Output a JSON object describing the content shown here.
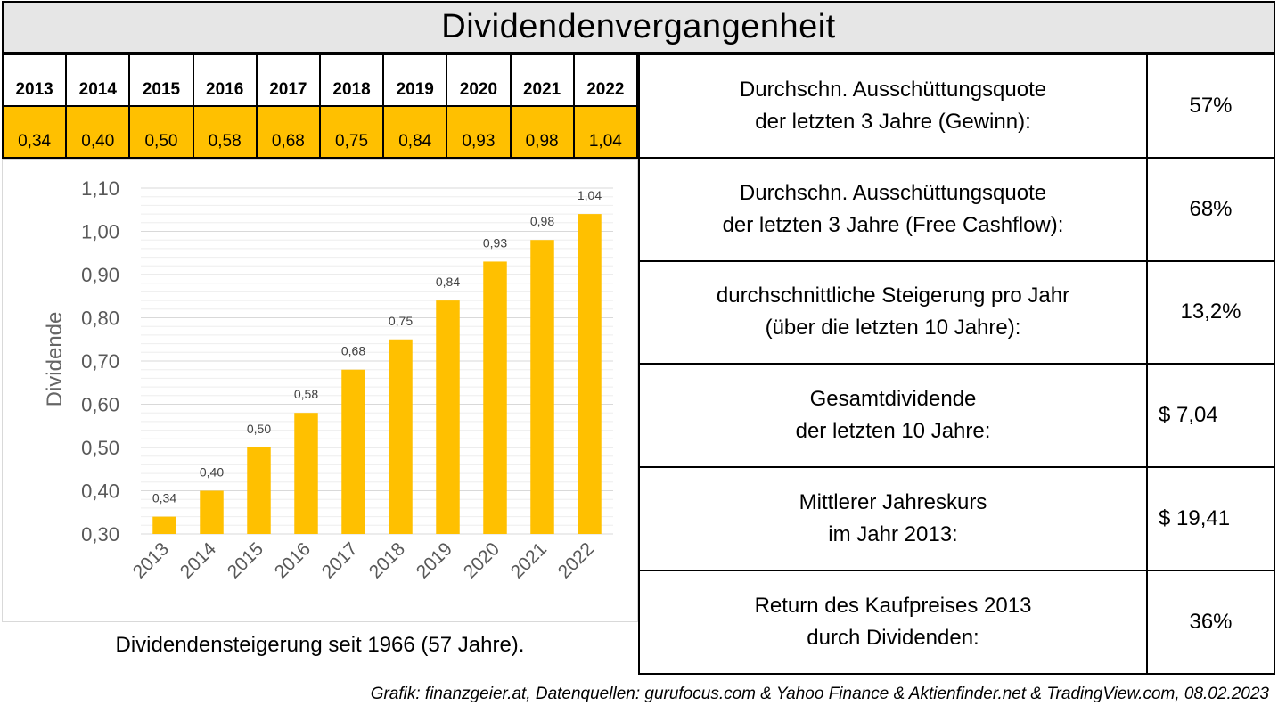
{
  "title": "Dividendenvergangenheit",
  "years": [
    "2013",
    "2014",
    "2015",
    "2016",
    "2017",
    "2018",
    "2019",
    "2020",
    "2021",
    "2022"
  ],
  "dividends_text": [
    "0,34",
    "0,40",
    "0,50",
    "0,58",
    "0,68",
    "0,75",
    "0,84",
    "0,93",
    "0,98",
    "1,04"
  ],
  "chart_data": {
    "type": "bar",
    "categories": [
      "2013",
      "2014",
      "2015",
      "2016",
      "2017",
      "2018",
      "2019",
      "2020",
      "2021",
      "2022"
    ],
    "values": [
      0.34,
      0.4,
      0.5,
      0.58,
      0.68,
      0.75,
      0.84,
      0.93,
      0.98,
      1.04
    ],
    "data_labels": [
      "0,34",
      "0,40",
      "0,50",
      "0,58",
      "0,68",
      "0,75",
      "0,84",
      "0,93",
      "0,98",
      "1,04"
    ],
    "ylabel": "Dividende",
    "ylim": [
      0.3,
      1.1
    ],
    "yticks": [
      0.3,
      0.4,
      0.5,
      0.6,
      0.7,
      0.8,
      0.9,
      1.0,
      1.1
    ],
    "ytick_labels": [
      "0,30",
      "0,40",
      "0,50",
      "0,60",
      "0,70",
      "0,80",
      "0,90",
      "1,00",
      "1,10"
    ],
    "bar_color": "#ffc000",
    "grid": true
  },
  "caption": "Dividendensteigerung seit 1966 (57 Jahre).",
  "stats": [
    {
      "line1": "Durchschn. Ausschüttungsquote",
      "line2": "der letzten 3 Jahre (Gewinn):",
      "value": "57%"
    },
    {
      "line1": "Durchschn. Ausschüttungsquote",
      "line2": "der letzten 3 Jahre (Free Cashflow):",
      "value": "68%"
    },
    {
      "line1": "durchschnittliche Steigerung pro Jahr",
      "line2": "(über die letzten 10 Jahre):",
      "value": "13,2%"
    },
    {
      "line1": "Gesamtdividende",
      "line2": "der letzten 10 Jahre:",
      "value": "$ 7,04"
    },
    {
      "line1": "Mittlerer Jahreskurs",
      "line2": "im Jahr 2013:",
      "value": "$ 19,41"
    },
    {
      "line1": "Return des Kaufpreises 2013",
      "line2": "durch Dividenden:",
      "value": "36%"
    }
  ],
  "source": "Grafik: finanzgeier.at, Datenquellen: gurufocus.com & Yahoo Finance & Aktienfinder.net & TradingView.com, 08.02.2023"
}
